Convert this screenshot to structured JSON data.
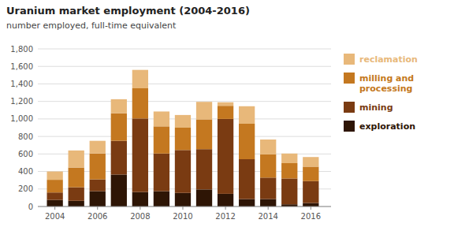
{
  "chart_data": {
    "type": "bar",
    "stacked": true,
    "title": "Uranium market employment (2004-2016)",
    "subtitle": "number employed, full-time equivalent",
    "x": [
      2004,
      2005,
      2006,
      2007,
      2008,
      2009,
      2010,
      2011,
      2012,
      2013,
      2014,
      2015,
      2016
    ],
    "xlim": [
      2003.2,
      2016.95
    ],
    "xticks": [
      2004,
      2006,
      2008,
      2010,
      2012,
      2014,
      2016
    ],
    "ylim": [
      0,
      1800
    ],
    "yticks": [
      0,
      200,
      400,
      600,
      800,
      {
        "value": 1000,
        "label": "1,000"
      },
      {
        "value": 1200,
        "label": "1,200"
      },
      {
        "value": 1400,
        "label": "1,400"
      },
      {
        "value": 1600,
        "label": "1,600"
      },
      {
        "value": 1800,
        "label": "1,800"
      }
    ],
    "grid": true,
    "legend": "right",
    "series": [
      {
        "name": "exploration",
        "color": "#2e1505",
        "values": [
          75,
          65,
          175,
          365,
          165,
          175,
          155,
          195,
          145,
          85,
          85,
          25,
          40
        ]
      },
      {
        "name": "mining",
        "color": "#7a3b12",
        "values": [
          85,
          155,
          135,
          385,
          840,
          430,
          490,
          460,
          855,
          455,
          245,
          295,
          250
        ]
      },
      {
        "name": "milling and\nprocessing",
        "color": "#c47820",
        "values": [
          145,
          225,
          295,
          315,
          345,
          310,
          255,
          340,
          150,
          405,
          265,
          175,
          165
        ]
      },
      {
        "name": "reclamation",
        "color": "#e8b87a",
        "values": [
          95,
          195,
          145,
          160,
          210,
          170,
          145,
          200,
          40,
          200,
          170,
          110,
          110
        ]
      }
    ]
  }
}
